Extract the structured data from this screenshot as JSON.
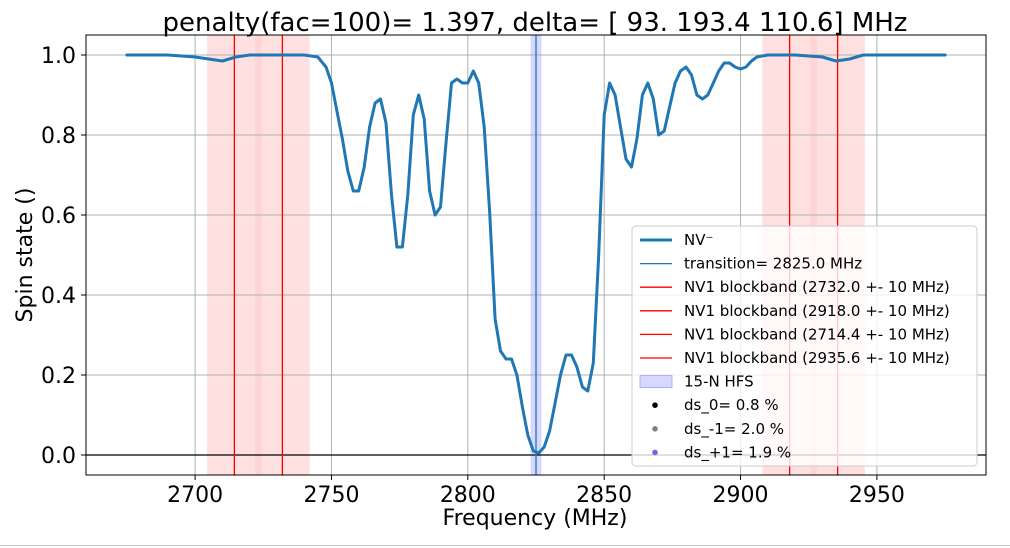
{
  "chart_data": {
    "type": "line",
    "title": "penalty(fac=100)= 1.397, delta= [ 93.  193.4 110.6] MHz",
    "xlabel": "Frequency (MHz)",
    "ylabel": "Spin state ()",
    "xlim": [
      2660,
      2990
    ],
    "ylim": [
      -0.05,
      1.05
    ],
    "xticks": [
      2700,
      2750,
      2800,
      2850,
      2900,
      2950
    ],
    "yticks": [
      0.0,
      0.2,
      0.4,
      0.6,
      0.8,
      1.0
    ],
    "xtick_labels": [
      "2700",
      "2750",
      "2800",
      "2850",
      "2900",
      "2950"
    ],
    "ytick_labels": [
      "0.0",
      "0.2",
      "0.4",
      "0.6",
      "0.8",
      "1.0"
    ],
    "grid": true,
    "legend_position": "lower-right",
    "series": [
      {
        "name": "NV⁻",
        "color": "#1f77b4",
        "x": [
          2675,
          2690,
          2700,
          2705,
          2710,
          2715,
          2720,
          2730,
          2740,
          2745,
          2748,
          2750,
          2752,
          2754,
          2756,
          2758,
          2760,
          2762,
          2764,
          2766,
          2768,
          2770,
          2772,
          2774,
          2776,
          2778,
          2780,
          2782,
          2784,
          2786,
          2788,
          2790,
          2792,
          2794,
          2796,
          2798,
          2800,
          2802,
          2804,
          2806,
          2808,
          2810,
          2812,
          2814,
          2816,
          2818,
          2820,
          2822,
          2824,
          2826,
          2828,
          2830,
          2832,
          2834,
          2836,
          2838,
          2840,
          2842,
          2844,
          2846,
          2848,
          2850,
          2852,
          2854,
          2856,
          2858,
          2860,
          2862,
          2864,
          2866,
          2868,
          2870,
          2872,
          2874,
          2876,
          2878,
          2880,
          2882,
          2884,
          2886,
          2888,
          2890,
          2892,
          2894,
          2896,
          2898,
          2900,
          2902,
          2904,
          2906,
          2910,
          2920,
          2930,
          2935,
          2940,
          2945,
          2950,
          2960,
          2975
        ],
        "values": [
          1.0,
          1.0,
          0.995,
          0.99,
          0.985,
          0.995,
          1.0,
          1.0,
          1.0,
          0.995,
          0.97,
          0.93,
          0.86,
          0.79,
          0.71,
          0.66,
          0.66,
          0.72,
          0.82,
          0.88,
          0.89,
          0.83,
          0.65,
          0.52,
          0.52,
          0.65,
          0.85,
          0.9,
          0.84,
          0.66,
          0.6,
          0.62,
          0.78,
          0.93,
          0.94,
          0.93,
          0.93,
          0.96,
          0.93,
          0.82,
          0.61,
          0.34,
          0.26,
          0.24,
          0.24,
          0.2,
          0.12,
          0.05,
          0.01,
          0.005,
          0.02,
          0.06,
          0.13,
          0.2,
          0.25,
          0.25,
          0.22,
          0.17,
          0.16,
          0.23,
          0.5,
          0.85,
          0.93,
          0.9,
          0.82,
          0.74,
          0.72,
          0.79,
          0.9,
          0.93,
          0.89,
          0.8,
          0.81,
          0.87,
          0.93,
          0.96,
          0.97,
          0.95,
          0.9,
          0.89,
          0.9,
          0.93,
          0.96,
          0.98,
          0.98,
          0.97,
          0.965,
          0.97,
          0.985,
          0.995,
          1.0,
          1.0,
          0.995,
          0.985,
          0.99,
          1.0,
          1.0,
          1.0,
          1.0
        ]
      }
    ],
    "legend": [
      {
        "label": "NV⁻",
        "kind": "line-thick",
        "color": "#1f77b4"
      },
      {
        "label": "transition= 2825.0 MHz",
        "kind": "line",
        "color": "#1f77b4"
      },
      {
        "label": "NV1 blockband (2732.0 +- 10 MHz)",
        "kind": "line",
        "color": "#ff0000"
      },
      {
        "label": "NV1 blockband (2918.0 +- 10 MHz)",
        "kind": "line",
        "color": "#ff0000"
      },
      {
        "label": "NV1 blockband (2714.4 +- 10 MHz)",
        "kind": "line",
        "color": "#ff0000"
      },
      {
        "label": "NV1 blockband (2935.6 +- 10 MHz)",
        "kind": "line",
        "color": "#ff0000"
      },
      {
        "label": "15-N HFS",
        "kind": "patch",
        "color": "#c8c8ff"
      },
      {
        "label": "ds_0= 0.8 %",
        "kind": "dot",
        "color": "#000000"
      },
      {
        "label": "ds_-1= 2.0 %",
        "kind": "dot",
        "color": "#808080"
      },
      {
        "label": "ds_+1= 1.9 %",
        "kind": "dot",
        "color": "#6a6ae0"
      }
    ],
    "transition_line": {
      "x": 2825.0,
      "color": "#1f77b4"
    },
    "blockbands": [
      {
        "center": 2732.0,
        "halfwidth": 10
      },
      {
        "center": 2918.0,
        "halfwidth": 10
      },
      {
        "center": 2714.4,
        "halfwidth": 10
      },
      {
        "center": 2935.6,
        "halfwidth": 10
      }
    ],
    "blockband_color": "#ff0000",
    "blockband_fill": "#ffcccc",
    "hfs_band": {
      "from": 2823.0,
      "to": 2827.0,
      "color": "#c8c8ff"
    },
    "zero_line": 0.0
  }
}
